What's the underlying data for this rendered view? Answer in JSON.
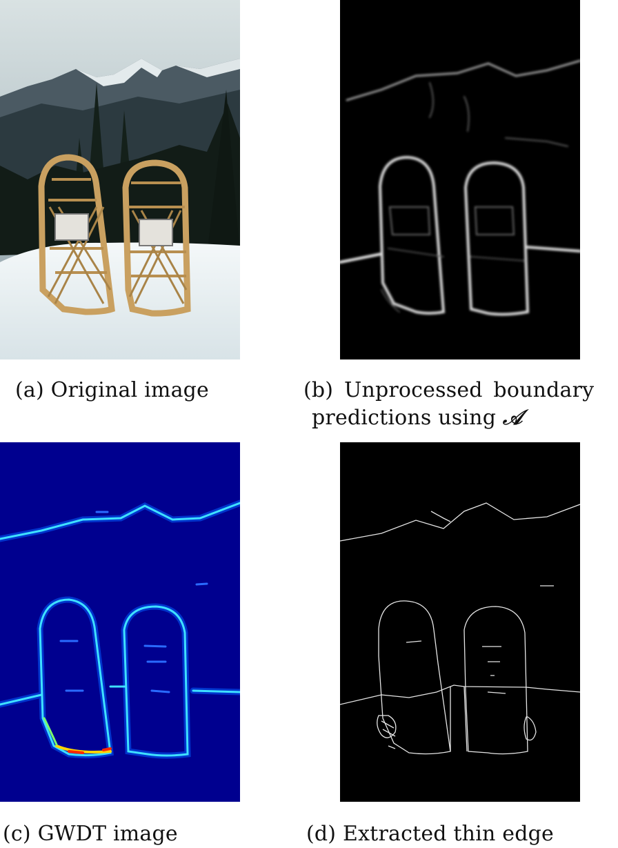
{
  "figure": {
    "panels": [
      {
        "id": "a",
        "label": "(a)",
        "caption": "Original image"
      },
      {
        "id": "b",
        "label": "(b)",
        "caption_line1": "Unprocessed boundary",
        "caption_line2": "predictions using",
        "symbol": "𝒜"
      },
      {
        "id": "c",
        "label": "(c)",
        "caption": "GWDT image"
      },
      {
        "id": "d",
        "label": "(d)",
        "caption": "Extracted thin edge"
      }
    ],
    "colors": {
      "sky": "#c9d6d8",
      "snow": "#eef3f4",
      "snowshoe_frame": "#c9a060",
      "gwdt_background": "#00008f",
      "edge_white": "#ffffff"
    }
  }
}
